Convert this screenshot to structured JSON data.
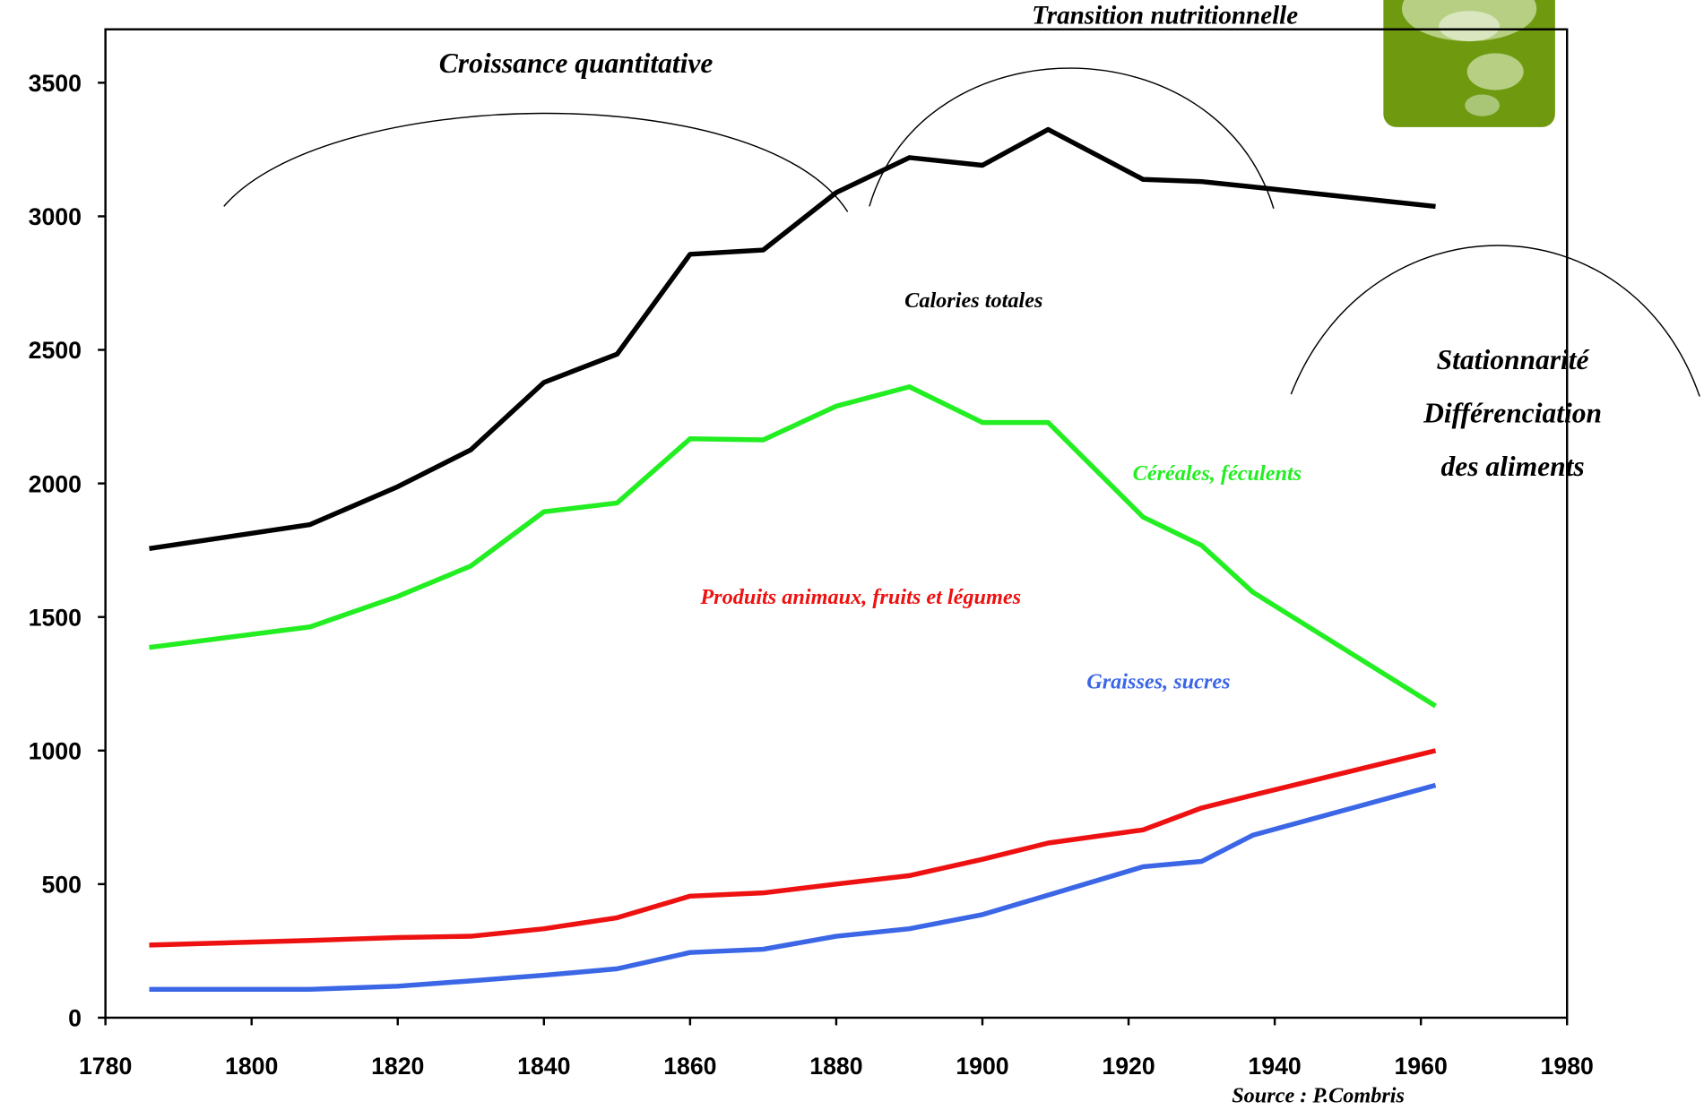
{
  "chart_data": {
    "type": "line",
    "x": [
      1786,
      1808,
      1820,
      1830,
      1840,
      1850,
      1860,
      1870,
      1880,
      1890,
      1900,
      1909,
      1922,
      1930,
      1937,
      1962
    ],
    "series": [
      {
        "name": "Calories totales",
        "color": "#000000",
        "values": [
          1756,
          1846,
          1988,
          2126,
          2378,
          2484,
          2858,
          2874,
          3089,
          3220,
          3191,
          3325,
          3138,
          3130,
          3110,
          3037
        ]
      },
      {
        "name": "Céréales, féculents",
        "color": "#22ee22",
        "values": [
          1386,
          1463,
          1577,
          1691,
          1894,
          1927,
          2167,
          2163,
          2289,
          2362,
          2228,
          2228,
          1874,
          1768,
          1593,
          1167
        ]
      },
      {
        "name": "Produits animaux, fruits et légumes",
        "color": "#ee1111",
        "values": [
          272,
          289,
          300,
          305,
          333,
          374,
          455,
          467,
          500,
          532,
          593,
          654,
          703,
          785,
          833,
          1000
        ]
      },
      {
        "name": "Graisses, sucres",
        "color": "#3b66e6",
        "values": [
          106,
          106,
          118,
          138,
          159,
          183,
          244,
          256,
          305,
          333,
          386,
          459,
          565,
          585,
          683,
          870
        ]
      }
    ],
    "xlim": [
      1780,
      1980
    ],
    "xticks": [
      1780,
      1800,
      1820,
      1840,
      1860,
      1880,
      1900,
      1920,
      1940,
      1960,
      1980
    ],
    "ylim": [
      0,
      3700
    ],
    "yticks": [
      0,
      500,
      1000,
      1500,
      2000,
      2500,
      3000,
      3500
    ],
    "annotations": {
      "phase1": "Croissance quantitative",
      "phase2": "Transition nutritionnelle",
      "phase3": [
        "Stationnarité",
        "Différenciation",
        "des aliments"
      ],
      "source": "Source : P.Combris"
    }
  }
}
